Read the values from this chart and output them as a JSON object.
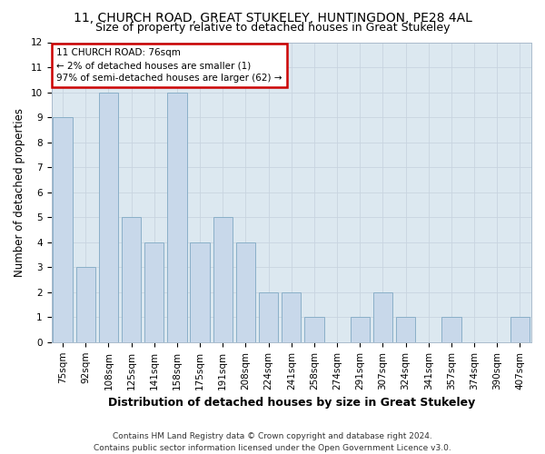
{
  "title": "11, CHURCH ROAD, GREAT STUKELEY, HUNTINGDON, PE28 4AL",
  "subtitle": "Size of property relative to detached houses in Great Stukeley",
  "xlabel": "Distribution of detached houses by size in Great Stukeley",
  "ylabel": "Number of detached properties",
  "categories": [
    "75sqm",
    "92sqm",
    "108sqm",
    "125sqm",
    "141sqm",
    "158sqm",
    "175sqm",
    "191sqm",
    "208sqm",
    "224sqm",
    "241sqm",
    "258sqm",
    "274sqm",
    "291sqm",
    "307sqm",
    "324sqm",
    "341sqm",
    "357sqm",
    "374sqm",
    "390sqm",
    "407sqm"
  ],
  "values": [
    9,
    3,
    10,
    5,
    4,
    10,
    4,
    5,
    4,
    2,
    2,
    1,
    0,
    1,
    2,
    1,
    0,
    1,
    0,
    0,
    1
  ],
  "bar_color": "#c8d8ea",
  "bar_edge_color": "#8aafc8",
  "annotation_box_text": "11 CHURCH ROAD: 76sqm\n← 2% of detached houses are smaller (1)\n97% of semi-detached houses are larger (62) →",
  "annotation_box_color": "#ffffff",
  "annotation_box_edge_color": "#cc0000",
  "ylim": [
    0,
    12
  ],
  "yticks": [
    0,
    1,
    2,
    3,
    4,
    5,
    6,
    7,
    8,
    9,
    10,
    11,
    12
  ],
  "grid_color": "#c8d4e0",
  "plot_bg_color": "#dce8f0",
  "fig_bg_color": "#ffffff",
  "footer_line1": "Contains HM Land Registry data © Crown copyright and database right 2024.",
  "footer_line2": "Contains public sector information licensed under the Open Government Licence v3.0.",
  "title_fontsize": 10,
  "subtitle_fontsize": 9,
  "xlabel_fontsize": 9,
  "ylabel_fontsize": 8.5,
  "tick_fontsize": 7.5,
  "annotation_fontsize": 7.5,
  "footer_fontsize": 6.5
}
